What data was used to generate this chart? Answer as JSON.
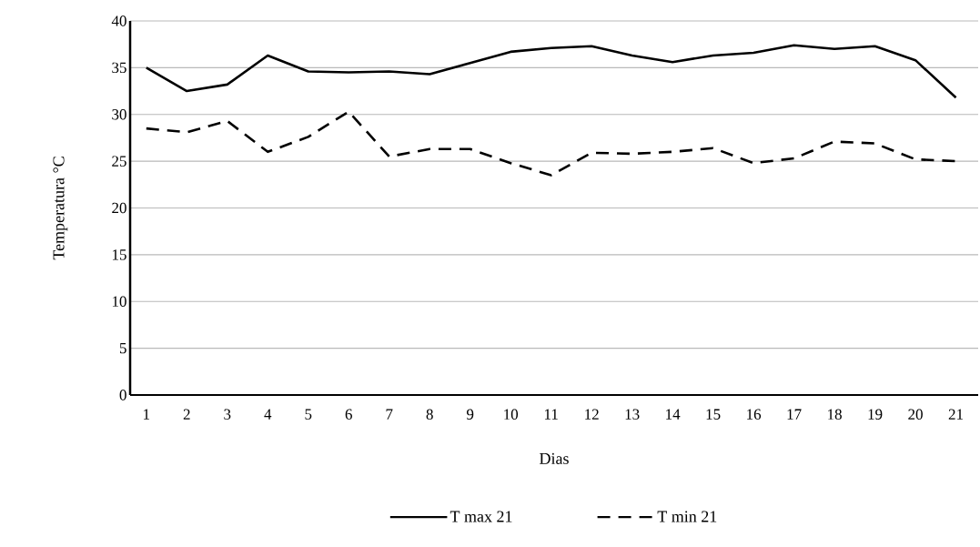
{
  "chart_data": {
    "type": "line",
    "xlabel": "Dias",
    "ylabel": "Temperatura °C",
    "categories": [
      "1",
      "2",
      "3",
      "4",
      "5",
      "6",
      "7",
      "8",
      "9",
      "10",
      "11",
      "12",
      "13",
      "14",
      "15",
      "16",
      "17",
      "18",
      "19",
      "20",
      "21"
    ],
    "series": [
      {
        "name": "T max 21",
        "color": "#000000",
        "line_style": "solid",
        "values": [
          35,
          32.5,
          33.2,
          36.3,
          34.6,
          34.5,
          34.6,
          34.3,
          35.5,
          36.7,
          37.1,
          37.3,
          36.3,
          35.6,
          36.3,
          36.6,
          37.4,
          37.0,
          37.3,
          35.8,
          31.8
        ]
      },
      {
        "name": "T min 21",
        "color": "#000000",
        "line_style": "dashed",
        "values": [
          28.5,
          28.1,
          29.3,
          26.0,
          27.6,
          30.3,
          25.5,
          26.3,
          26.3,
          24.8,
          23.5,
          25.9,
          25.8,
          26.0,
          26.4,
          24.8,
          25.3,
          27.1,
          26.9,
          25.2,
          25.0
        ]
      }
    ],
    "ylim": [
      0,
      40
    ],
    "yticks": [
      0,
      5,
      10,
      15,
      20,
      25,
      30,
      35,
      40
    ],
    "grid": "y",
    "legend": "bottom",
    "marker": "none"
  }
}
